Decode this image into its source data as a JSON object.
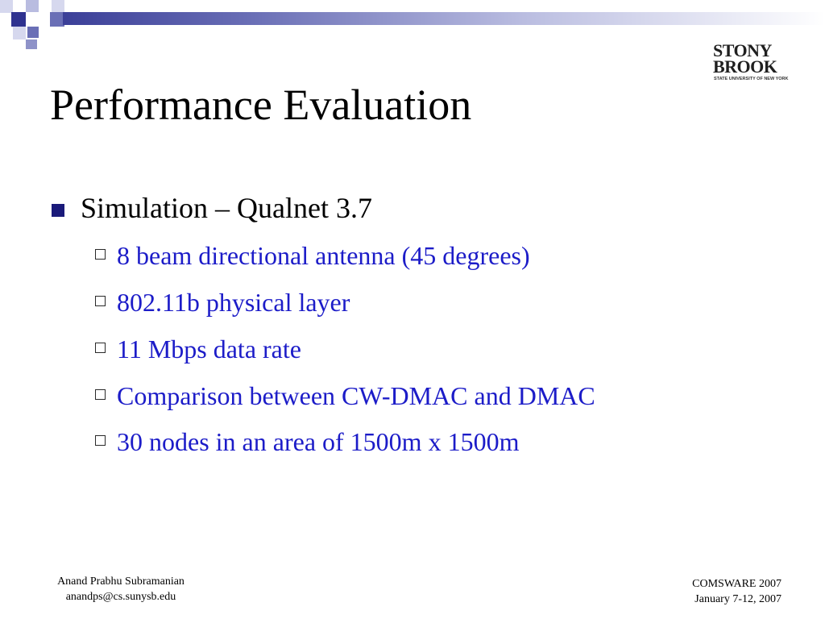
{
  "slide": {
    "title": "Performance Evaluation",
    "logo": {
      "line1": "STONY",
      "line2": "BROOK",
      "subtitle": "STATE UNIVERSITY OF NEW YORK"
    },
    "bullets": [
      {
        "text": "Simulation – Qualnet 3.7",
        "sub": [
          "8 beam directional antenna (45 degrees)",
          "802.11b physical layer",
          "11 Mbps data rate",
          "Comparison between CW-DMAC and DMAC",
          " 30 nodes in an area of 1500m x 1500m"
        ]
      }
    ],
    "footer_left": {
      "name": "Anand Prabhu Subramanian",
      "email": "anandps@cs.sunysb.edu"
    },
    "footer_right": {
      "conference": "COMSWARE 2007",
      "dates": "January 7-12, 2007"
    }
  },
  "colors": {
    "title_text": "#000000",
    "sub_bullet_text": "#1c1cc8",
    "bullet_marker": "#1a1a7a",
    "decor_dark": "#3b3f98",
    "decor_light": "#b9bce0"
  }
}
